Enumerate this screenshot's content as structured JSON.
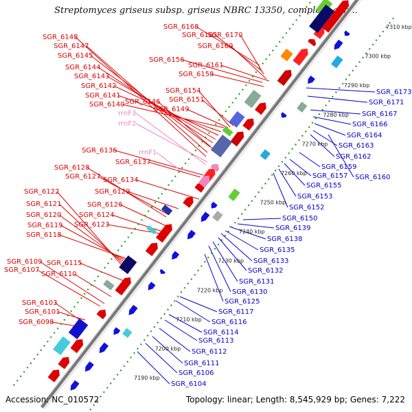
{
  "title": "Streptomyces griseus subsp. griseus NBRC 13350, complete gen...",
  "accession": "Accession: NC_010572",
  "summary": "Topology: linear; Length: 8,545,929 bp; Genes: 7,222",
  "colors": {
    "forward": "#dd0000",
    "reverse": "#0000cc",
    "rrna": "#ee88bb",
    "axis": "#777777",
    "ticks": "#229922"
  },
  "kbp_ticks": [
    "7190 kbp",
    "7200 kbp",
    "7210 kbp",
    "7220 kbp",
    "7230 kbp",
    "7240 kbp",
    "7250 kbp",
    "7260 kbp",
    "7270 kbp",
    "7280 kbp",
    "7290 kbp",
    "7300 kbp",
    "7310 kbp"
  ],
  "left_labels": [
    {
      "text": "SGR_6168",
      "color": "red"
    },
    {
      "text": "SGR_6165",
      "color": "red"
    },
    {
      "text": "SGR_6170",
      "color": "red"
    },
    {
      "text": "SGR_6148",
      "color": "red"
    },
    {
      "text": "SGR_6169",
      "color": "red"
    },
    {
      "text": "SGR_6147",
      "color": "red"
    },
    {
      "text": "SGR_6145",
      "color": "red"
    },
    {
      "text": "SGR_6156",
      "color": "red"
    },
    {
      "text": "SGR_6161",
      "color": "red"
    },
    {
      "text": "SGR_6144",
      "color": "red"
    },
    {
      "text": "SGR_6158",
      "color": "red"
    },
    {
      "text": "SGR_6143",
      "color": "red"
    },
    {
      "text": "SGR_6142",
      "color": "red"
    },
    {
      "text": "SGR_6154",
      "color": "red"
    },
    {
      "text": "SGR_6141",
      "color": "red"
    },
    {
      "text": "SGR_6146",
      "color": "red"
    },
    {
      "text": "SGR_6151",
      "color": "red"
    },
    {
      "text": "SGR_6140",
      "color": "red"
    },
    {
      "text": "SGR_6149",
      "color": "red"
    },
    {
      "text": "rrnF3",
      "color": "pink"
    },
    {
      "text": "rrnF2",
      "color": "pink"
    },
    {
      "text": "SGR_6136",
      "color": "red"
    },
    {
      "text": "rrnF1",
      "color": "pink"
    },
    {
      "text": "SGR_6137",
      "color": "red"
    },
    {
      "text": "SGR_6128",
      "color": "red"
    },
    {
      "text": "SGR_6127",
      "color": "red"
    },
    {
      "text": "SGR_6134",
      "color": "red"
    },
    {
      "text": "SGR_6129",
      "color": "red"
    },
    {
      "text": "SGR_6122",
      "color": "red"
    },
    {
      "text": "SGR_6121",
      "color": "red"
    },
    {
      "text": "SGR_6126",
      "color": "red"
    },
    {
      "text": "SGR_6120",
      "color": "red"
    },
    {
      "text": "SGR_6124",
      "color": "red"
    },
    {
      "text": "SGR_6119",
      "color": "red"
    },
    {
      "text": "SGR_6123",
      "color": "red"
    },
    {
      "text": "SGR_6118",
      "color": "red"
    },
    {
      "text": "SGR_6109",
      "color": "red"
    },
    {
      "text": "SGR_6115",
      "color": "red"
    },
    {
      "text": "SGR_6107",
      "color": "red"
    },
    {
      "text": "SGR_6110",
      "color": "red"
    },
    {
      "text": "SGR_6103",
      "color": "red"
    },
    {
      "text": "SGR_6101",
      "color": "red"
    },
    {
      "text": "SGR_6098",
      "color": "red"
    }
  ],
  "right_labels": [
    {
      "text": "SGR_6173"
    },
    {
      "text": "SGR_6171"
    },
    {
      "text": "SGR_6167"
    },
    {
      "text": "SGR_6166"
    },
    {
      "text": "SGR_6164"
    },
    {
      "text": "SGR_6163"
    },
    {
      "text": "SGR_6162"
    },
    {
      "text": "SGR_6159"
    },
    {
      "text": "SGR_6160"
    },
    {
      "text": "SGR_6157"
    },
    {
      "text": "SGR_6155"
    },
    {
      "text": "SGR_6153"
    },
    {
      "text": "SGR_6152"
    },
    {
      "text": "SGR_6150"
    },
    {
      "text": "SGR_6139"
    },
    {
      "text": "SGR_6138"
    },
    {
      "text": "SGR_6135"
    },
    {
      "text": "SGR_6133"
    },
    {
      "text": "SGR_6132"
    },
    {
      "text": "SGR_6131"
    },
    {
      "text": "SGR_6130"
    },
    {
      "text": "SGR_6125"
    },
    {
      "text": "SGR_6117"
    },
    {
      "text": "SGR_6116"
    },
    {
      "text": "SGR_6114"
    },
    {
      "text": "SGR_6113"
    },
    {
      "text": "SGR_6112"
    },
    {
      "text": "SGR_6111"
    },
    {
      "text": "SGR_6106"
    },
    {
      "text": "SGR_6104"
    }
  ]
}
